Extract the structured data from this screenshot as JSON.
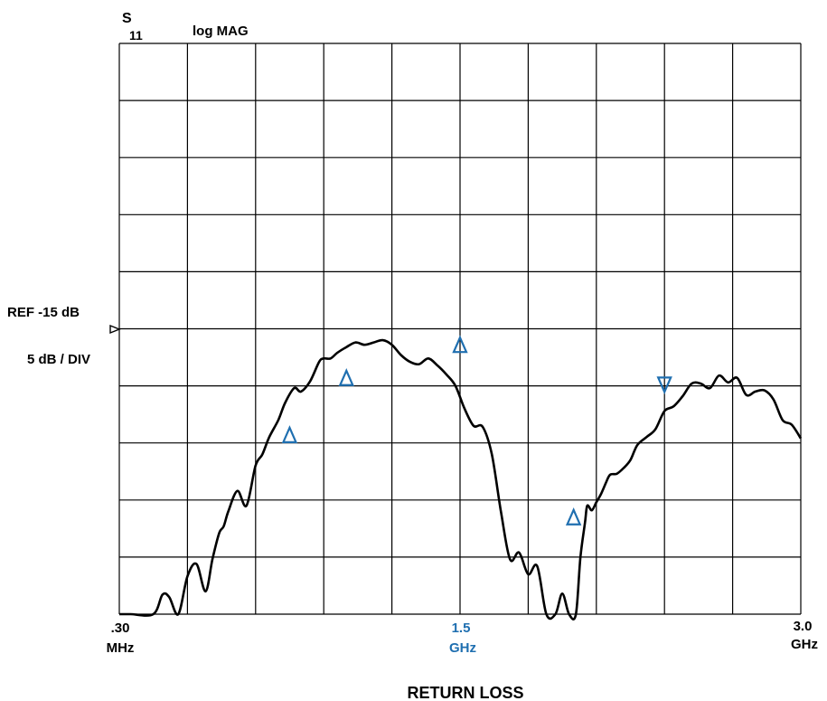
{
  "chart_data": {
    "type": "line",
    "parameter": "S",
    "parameter_sub": "11",
    "format_label": "log MAG",
    "ref_label": "REF -15 dB",
    "scale_label": "5 dB / DIV",
    "x_start_label": ".30",
    "x_start_unit": "MHz",
    "x_center_label": "1.5",
    "x_center_unit": "GHz",
    "x_stop_label": "3.0",
    "x_stop_unit": "GHz",
    "xlabel": "RETURN LOSS",
    "x_range_ghz": [
      0.0003,
      3.0
    ],
    "y_divisions": 10,
    "x_divisions": 10,
    "ref_level_db": -15,
    "db_per_div": 5,
    "ylim_db": [
      -45,
      5
    ],
    "grid": true,
    "trace_color": "#000000",
    "marker_color": "#1f6fb0",
    "series": [
      {
        "x": [
          0.0003,
          0.05,
          0.15,
          0.19,
          0.22,
          0.26,
          0.3,
          0.34,
          0.38,
          0.41,
          0.44,
          0.46,
          0.48,
          0.52,
          0.56,
          0.6,
          0.63,
          0.66,
          0.7,
          0.73,
          0.77,
          0.8,
          0.84,
          0.88,
          0.9,
          0.93,
          0.96,
          1.0,
          1.04,
          1.08,
          1.12,
          1.16,
          1.2,
          1.24,
          1.28,
          1.32,
          1.36,
          1.4,
          1.44,
          1.48,
          1.52,
          1.56,
          1.6,
          1.64,
          1.68,
          1.72,
          1.76,
          1.8,
          1.84,
          1.88,
          1.92,
          1.95,
          1.98,
          2.01,
          2.03,
          2.05,
          2.06,
          2.08,
          2.1,
          2.12,
          2.14,
          2.16,
          2.19,
          2.22,
          2.25,
          2.28,
          2.32,
          2.36,
          2.4,
          2.44,
          2.48,
          2.52,
          2.56,
          2.6,
          2.64,
          2.68,
          2.72,
          2.76,
          2.8,
          2.84,
          2.88,
          2.92,
          2.96,
          3.0
        ],
        "y": [
          -45,
          -45,
          -45,
          -43.3,
          -43.5,
          -45,
          -41.7,
          -40.6,
          -43,
          -40.2,
          -37.9,
          -37.3,
          -36,
          -34.2,
          -35.5,
          -32,
          -31,
          -29.5,
          -28,
          -26.5,
          -25.2,
          -25.5,
          -24.6,
          -22.9,
          -22.6,
          -22.6,
          -22.1,
          -21.6,
          -21.2,
          -21.4,
          -21.2,
          -21,
          -21.4,
          -22.3,
          -22.9,
          -23.1,
          -22.6,
          -23.2,
          -24,
          -25,
          -27,
          -28.5,
          -28.6,
          -31,
          -36,
          -40.2,
          -39.6,
          -41.5,
          -40.8,
          -45,
          -45,
          -43.2,
          -45,
          -45,
          -40,
          -37,
          -35.5,
          -35.9,
          -35.2,
          -34.5,
          -33.6,
          -32.8,
          -32.7,
          -32.2,
          -31.5,
          -30.2,
          -29.5,
          -28.8,
          -27.2,
          -26.8,
          -25.9,
          -24.8,
          -24.8,
          -25.2,
          -24.1,
          -24.7,
          -24.3,
          -25.8,
          -25.5,
          -25.4,
          -26.2,
          -28,
          -28.4,
          -29.6
        ]
      }
    ],
    "markers": [
      {
        "x": 0.75,
        "y": -29.3,
        "dir": "up"
      },
      {
        "x": 1.0,
        "y": -24.3,
        "dir": "up"
      },
      {
        "x": 1.5,
        "y": -21.4,
        "dir": "up"
      },
      {
        "x": 2.0,
        "y": -36.5,
        "dir": "up"
      },
      {
        "x": 2.4,
        "y": -24.9,
        "dir": "down"
      }
    ]
  }
}
